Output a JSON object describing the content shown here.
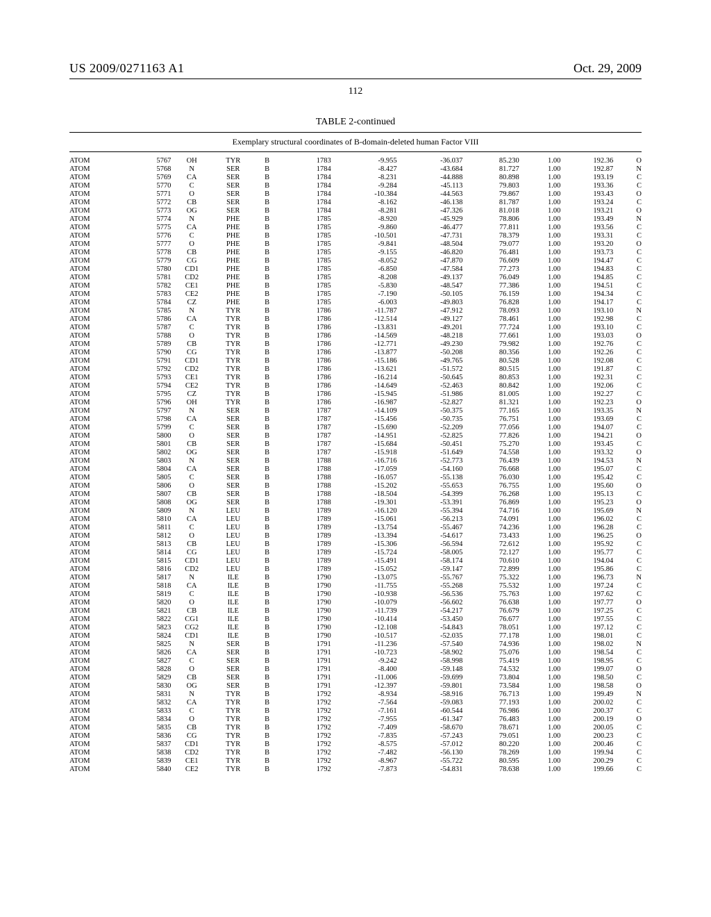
{
  "header": {
    "doc_number": "US 2009/0271163 A1",
    "date": "Oct. 29, 2009",
    "page_number": "112"
  },
  "table": {
    "title": "TABLE 2-continued",
    "subtitle": "Exemplary structural coordinates of B-domain-deleted human Factor VIII",
    "col_classes": [
      "c0",
      "c1",
      "c2",
      "c3",
      "c4",
      "c5",
      "c6",
      "c7",
      "c8",
      "c9",
      "c10",
      "c11"
    ],
    "rows": [
      [
        "ATOM",
        "5767",
        "OH",
        "TYR",
        "B",
        "1783",
        "-9.955",
        "-36.037",
        "85.230",
        "1.00",
        "192.36",
        "O"
      ],
      [
        "ATOM",
        "5768",
        "N",
        "SER",
        "B",
        "1784",
        "-8.427",
        "-43.684",
        "81.727",
        "1.00",
        "192.87",
        "N"
      ],
      [
        "ATOM",
        "5769",
        "CA",
        "SER",
        "B",
        "1784",
        "-8.231",
        "-44.888",
        "80.898",
        "1.00",
        "193.19",
        "C"
      ],
      [
        "ATOM",
        "5770",
        "C",
        "SER",
        "B",
        "1784",
        "-9.284",
        "-45.113",
        "79.803",
        "1.00",
        "193.36",
        "C"
      ],
      [
        "ATOM",
        "5771",
        "O",
        "SER",
        "B",
        "1784",
        "-10.384",
        "-44.563",
        "79.867",
        "1.00",
        "193.43",
        "O"
      ],
      [
        "ATOM",
        "5772",
        "CB",
        "SER",
        "B",
        "1784",
        "-8.162",
        "-46.138",
        "81.787",
        "1.00",
        "193.24",
        "C"
      ],
      [
        "ATOM",
        "5773",
        "OG",
        "SER",
        "B",
        "1784",
        "-8.281",
        "-47.326",
        "81.018",
        "1.00",
        "193.21",
        "O"
      ],
      [
        "ATOM",
        "5774",
        "N",
        "PHE",
        "B",
        "1785",
        "-8.920",
        "-45.929",
        "78.806",
        "1.00",
        "193.49",
        "N"
      ],
      [
        "ATOM",
        "5775",
        "CA",
        "PHE",
        "B",
        "1785",
        "-9.860",
        "-46.477",
        "77.811",
        "1.00",
        "193.56",
        "C"
      ],
      [
        "ATOM",
        "5776",
        "C",
        "PHE",
        "B",
        "1785",
        "-10.501",
        "-47.731",
        "78.379",
        "1.00",
        "193.31",
        "C"
      ],
      [
        "ATOM",
        "5777",
        "O",
        "PHE",
        "B",
        "1785",
        "-9.841",
        "-48.504",
        "79.077",
        "1.00",
        "193.20",
        "O"
      ],
      [
        "ATOM",
        "5778",
        "CB",
        "PHE",
        "B",
        "1785",
        "-9.155",
        "-46.820",
        "76.481",
        "1.00",
        "193.73",
        "C"
      ],
      [
        "ATOM",
        "5779",
        "CG",
        "PHE",
        "B",
        "1785",
        "-8.052",
        "-47.870",
        "76.609",
        "1.00",
        "194.47",
        "C"
      ],
      [
        "ATOM",
        "5780",
        "CD1",
        "PHE",
        "B",
        "1785",
        "-6.850",
        "-47.584",
        "77.273",
        "1.00",
        "194.83",
        "C"
      ],
      [
        "ATOM",
        "5781",
        "CD2",
        "PHE",
        "B",
        "1785",
        "-8.208",
        "-49.137",
        "76.049",
        "1.00",
        "194.85",
        "C"
      ],
      [
        "ATOM",
        "5782",
        "CE1",
        "PHE",
        "B",
        "1785",
        "-5.830",
        "-48.547",
        "77.386",
        "1.00",
        "194.51",
        "C"
      ],
      [
        "ATOM",
        "5783",
        "CE2",
        "PHE",
        "B",
        "1785",
        "-7.190",
        "-50.105",
        "76.159",
        "1.00",
        "194.34",
        "C"
      ],
      [
        "ATOM",
        "5784",
        "CZ",
        "PHE",
        "B",
        "1785",
        "-6.003",
        "-49.803",
        "76.828",
        "1.00",
        "194.17",
        "C"
      ],
      [
        "ATOM",
        "5785",
        "N",
        "TYR",
        "B",
        "1786",
        "-11.787",
        "-47.912",
        "78.093",
        "1.00",
        "193.10",
        "N"
      ],
      [
        "ATOM",
        "5786",
        "CA",
        "TYR",
        "B",
        "1786",
        "-12.514",
        "-49.127",
        "78.461",
        "1.00",
        "192.98",
        "C"
      ],
      [
        "ATOM",
        "5787",
        "C",
        "TYR",
        "B",
        "1786",
        "-13.831",
        "-49.201",
        "77.724",
        "1.00",
        "193.10",
        "C"
      ],
      [
        "ATOM",
        "5788",
        "O",
        "TYR",
        "B",
        "1786",
        "-14.569",
        "-48.218",
        "77.661",
        "1.00",
        "193.03",
        "O"
      ],
      [
        "ATOM",
        "5789",
        "CB",
        "TYR",
        "B",
        "1786",
        "-12.771",
        "-49.230",
        "79.982",
        "1.00",
        "192.76",
        "C"
      ],
      [
        "ATOM",
        "5790",
        "CG",
        "TYR",
        "B",
        "1786",
        "-13.877",
        "-50.208",
        "80.356",
        "1.00",
        "192.26",
        "C"
      ],
      [
        "ATOM",
        "5791",
        "CD1",
        "TYR",
        "B",
        "1786",
        "-15.186",
        "-49.765",
        "80.528",
        "1.00",
        "192.08",
        "C"
      ],
      [
        "ATOM",
        "5792",
        "CD2",
        "TYR",
        "B",
        "1786",
        "-13.621",
        "-51.572",
        "80.515",
        "1.00",
        "191.87",
        "C"
      ],
      [
        "ATOM",
        "5793",
        "CE1",
        "TYR",
        "B",
        "1786",
        "-16.214",
        "-50.645",
        "80.853",
        "1.00",
        "192.31",
        "C"
      ],
      [
        "ATOM",
        "5794",
        "CE2",
        "TYR",
        "B",
        "1786",
        "-14.649",
        "-52.463",
        "80.842",
        "1.00",
        "192.06",
        "C"
      ],
      [
        "ATOM",
        "5795",
        "CZ",
        "TYR",
        "B",
        "1786",
        "-15.945",
        "-51.986",
        "81.005",
        "1.00",
        "192.27",
        "C"
      ],
      [
        "ATOM",
        "5796",
        "OH",
        "TYR",
        "B",
        "1786",
        "-16.987",
        "-52.827",
        "81.321",
        "1.00",
        "192.23",
        "O"
      ],
      [
        "ATOM",
        "5797",
        "N",
        "SER",
        "B",
        "1787",
        "-14.109",
        "-50.375",
        "77.165",
        "1.00",
        "193.35",
        "N"
      ],
      [
        "ATOM",
        "5798",
        "CA",
        "SER",
        "B",
        "1787",
        "-15.456",
        "-50.735",
        "76.751",
        "1.00",
        "193.69",
        "C"
      ],
      [
        "ATOM",
        "5799",
        "C",
        "SER",
        "B",
        "1787",
        "-15.690",
        "-52.209",
        "77.056",
        "1.00",
        "194.07",
        "C"
      ],
      [
        "ATOM",
        "5800",
        "O",
        "SER",
        "B",
        "1787",
        "-14.951",
        "-52.825",
        "77.826",
        "1.00",
        "194.21",
        "O"
      ],
      [
        "ATOM",
        "5801",
        "CB",
        "SER",
        "B",
        "1787",
        "-15.684",
        "-50.451",
        "75.270",
        "1.00",
        "193.45",
        "C"
      ],
      [
        "ATOM",
        "5802",
        "OG",
        "SER",
        "B",
        "1787",
        "-15.918",
        "-51.649",
        "74.558",
        "1.00",
        "193.32",
        "O"
      ],
      [
        "ATOM",
        "5803",
        "N",
        "SER",
        "B",
        "1788",
        "-16.716",
        "-52.773",
        "76.439",
        "1.00",
        "194.53",
        "N"
      ],
      [
        "ATOM",
        "5804",
        "CA",
        "SER",
        "B",
        "1788",
        "-17.059",
        "-54.160",
        "76.668",
        "1.00",
        "195.07",
        "C"
      ],
      [
        "ATOM",
        "5805",
        "C",
        "SER",
        "B",
        "1788",
        "-16.057",
        "-55.138",
        "76.030",
        "1.00",
        "195.42",
        "C"
      ],
      [
        "ATOM",
        "5806",
        "O",
        "SER",
        "B",
        "1788",
        "-15.202",
        "-55.653",
        "76.755",
        "1.00",
        "195.60",
        "O"
      ],
      [
        "ATOM",
        "5807",
        "CB",
        "SER",
        "B",
        "1788",
        "-18.504",
        "-54.399",
        "76.268",
        "1.00",
        "195.13",
        "C"
      ],
      [
        "ATOM",
        "5808",
        "OG",
        "SER",
        "B",
        "1788",
        "-19.301",
        "-53.391",
        "76.869",
        "1.00",
        "195.23",
        "O"
      ],
      [
        "ATOM",
        "5809",
        "N",
        "LEU",
        "B",
        "1789",
        "-16.120",
        "-55.394",
        "74.716",
        "1.00",
        "195.69",
        "N"
      ],
      [
        "ATOM",
        "5810",
        "CA",
        "LEU",
        "B",
        "1789",
        "-15.061",
        "-56.213",
        "74.091",
        "1.00",
        "196.02",
        "C"
      ],
      [
        "ATOM",
        "5811",
        "C",
        "LEU",
        "B",
        "1789",
        "-13.754",
        "-55.467",
        "74.236",
        "1.00",
        "196.28",
        "C"
      ],
      [
        "ATOM",
        "5812",
        "O",
        "LEU",
        "B",
        "1789",
        "-13.394",
        "-54.617",
        "73.433",
        "1.00",
        "196.25",
        "O"
      ],
      [
        "ATOM",
        "5813",
        "CB",
        "LEU",
        "B",
        "1789",
        "-15.306",
        "-56.594",
        "72.612",
        "1.00",
        "195.92",
        "C"
      ],
      [
        "ATOM",
        "5814",
        "CG",
        "LEU",
        "B",
        "1789",
        "-15.724",
        "-58.005",
        "72.127",
        "1.00",
        "195.77",
        "C"
      ],
      [
        "ATOM",
        "5815",
        "CD1",
        "LEU",
        "B",
        "1789",
        "-15.491",
        "-58.174",
        "70.610",
        "1.00",
        "194.04",
        "C"
      ],
      [
        "ATOM",
        "5816",
        "CD2",
        "LEU",
        "B",
        "1789",
        "-15.052",
        "-59.147",
        "72.899",
        "1.00",
        "195.86",
        "C"
      ],
      [
        "ATOM",
        "5817",
        "N",
        "ILE",
        "B",
        "1790",
        "-13.075",
        "-55.767",
        "75.322",
        "1.00",
        "196.73",
        "N"
      ],
      [
        "ATOM",
        "5818",
        "CA",
        "ILE",
        "B",
        "1790",
        "-11.755",
        "-55.268",
        "75.532",
        "1.00",
        "197.24",
        "C"
      ],
      [
        "ATOM",
        "5819",
        "C",
        "ILE",
        "B",
        "1790",
        "-10.938",
        "-56.536",
        "75.763",
        "1.00",
        "197.62",
        "C"
      ],
      [
        "ATOM",
        "5820",
        "O",
        "ILE",
        "B",
        "1790",
        "-10.079",
        "-56.602",
        "76.638",
        "1.00",
        "197.77",
        "O"
      ],
      [
        "ATOM",
        "5821",
        "CB",
        "ILE",
        "B",
        "1790",
        "-11.739",
        "-54.217",
        "76.679",
        "1.00",
        "197.25",
        "C"
      ],
      [
        "ATOM",
        "5822",
        "CG1",
        "ILE",
        "B",
        "1790",
        "-10.414",
        "-53.450",
        "76.677",
        "1.00",
        "197.55",
        "C"
      ],
      [
        "ATOM",
        "5823",
        "CG2",
        "ILE",
        "B",
        "1790",
        "-12.108",
        "-54.843",
        "78.051",
        "1.00",
        "197.12",
        "C"
      ],
      [
        "ATOM",
        "5824",
        "CD1",
        "ILE",
        "B",
        "1790",
        "-10.517",
        "-52.035",
        "77.178",
        "1.00",
        "198.01",
        "C"
      ],
      [
        "ATOM",
        "5825",
        "N",
        "SER",
        "B",
        "1791",
        "-11.236",
        "-57.540",
        "74.936",
        "1.00",
        "198.02",
        "N"
      ],
      [
        "ATOM",
        "5826",
        "CA",
        "SER",
        "B",
        "1791",
        "-10.723",
        "-58.902",
        "75.076",
        "1.00",
        "198.54",
        "C"
      ],
      [
        "ATOM",
        "5827",
        "C",
        "SER",
        "B",
        "1791",
        "-9.242",
        "-58.998",
        "75.419",
        "1.00",
        "198.95",
        "C"
      ],
      [
        "ATOM",
        "5828",
        "O",
        "SER",
        "B",
        "1791",
        "-8.400",
        "-59.148",
        "74.532",
        "1.00",
        "199.07",
        "O"
      ],
      [
        "ATOM",
        "5829",
        "CB",
        "SER",
        "B",
        "1791",
        "-11.006",
        "-59.699",
        "73.804",
        "1.00",
        "198.50",
        "C"
      ],
      [
        "ATOM",
        "5830",
        "OG",
        "SER",
        "B",
        "1791",
        "-12.397",
        "-59.801",
        "73.584",
        "1.00",
        "198.58",
        "O"
      ],
      [
        "ATOM",
        "5831",
        "N",
        "TYR",
        "B",
        "1792",
        "-8.934",
        "-58.916",
        "76.713",
        "1.00",
        "199.49",
        "N"
      ],
      [
        "ATOM",
        "5832",
        "CA",
        "TYR",
        "B",
        "1792",
        "-7.564",
        "-59.083",
        "77.193",
        "1.00",
        "200.02",
        "C"
      ],
      [
        "ATOM",
        "5833",
        "C",
        "TYR",
        "B",
        "1792",
        "-7.161",
        "-60.544",
        "76.986",
        "1.00",
        "200.37",
        "C"
      ],
      [
        "ATOM",
        "5834",
        "O",
        "TYR",
        "B",
        "1792",
        "-7.955",
        "-61.347",
        "76.483",
        "1.00",
        "200.19",
        "O"
      ],
      [
        "ATOM",
        "5835",
        "CB",
        "TYR",
        "B",
        "1792",
        "-7.409",
        "-58.670",
        "78.671",
        "1.00",
        "200.05",
        "C"
      ],
      [
        "ATOM",
        "5836",
        "CG",
        "TYR",
        "B",
        "1792",
        "-7.835",
        "-57.243",
        "79.051",
        "1.00",
        "200.23",
        "C"
      ],
      [
        "ATOM",
        "5837",
        "CD1",
        "TYR",
        "B",
        "1792",
        "-8.575",
        "-57.012",
        "80.220",
        "1.00",
        "200.46",
        "C"
      ],
      [
        "ATOM",
        "5838",
        "CD2",
        "TYR",
        "B",
        "1792",
        "-7.482",
        "-56.130",
        "78.269",
        "1.00",
        "199.94",
        "C"
      ],
      [
        "ATOM",
        "5839",
        "CE1",
        "TYR",
        "B",
        "1792",
        "-8.967",
        "-55.722",
        "80.595",
        "1.00",
        "200.29",
        "C"
      ],
      [
        "ATOM",
        "5840",
        "CE2",
        "TYR",
        "B",
        "1792",
        "-7.873",
        "-54.831",
        "78.638",
        "1.00",
        "199.66",
        "C"
      ]
    ]
  }
}
